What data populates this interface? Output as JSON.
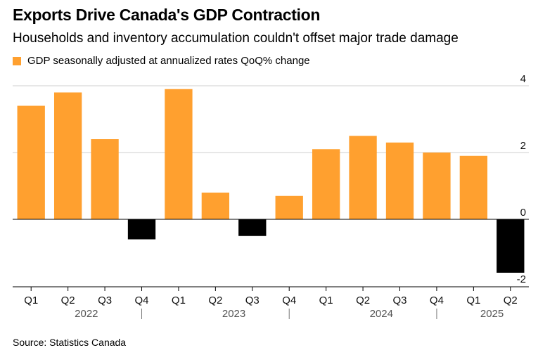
{
  "header": {
    "title": "Exports Drive Canada's GDP Contraction",
    "subtitle": "Households and inventory accumulation couldn't offset major trade damage"
  },
  "legend": {
    "label": "GDP seasonally adjusted at annualized rates QoQ% change",
    "color": "#FFA02F"
  },
  "source": "Source: Statistics Canada",
  "colors": {
    "positive": "#FFA02F",
    "negative": "#000000",
    "axis": "#000000",
    "grid": "#CFCFCF"
  },
  "chart_data": {
    "type": "bar",
    "categories": [
      "Q1",
      "Q2",
      "Q3",
      "Q4",
      "Q1",
      "Q2",
      "Q3",
      "Q4",
      "Q1",
      "Q2",
      "Q3",
      "Q4",
      "Q1",
      "Q2"
    ],
    "years": [
      {
        "label": "2022",
        "quarters": 4
      },
      {
        "label": "2023",
        "quarters": 4
      },
      {
        "label": "2024",
        "quarters": 4
      },
      {
        "label": "2025",
        "quarters": 2
      }
    ],
    "series": [
      {
        "name": "GDP seasonally adjusted at annualized rates QoQ% change",
        "values": [
          3.4,
          3.8,
          2.4,
          -0.6,
          3.9,
          0.8,
          -0.5,
          0.7,
          2.1,
          2.5,
          2.3,
          2.0,
          1.9,
          -1.6
        ]
      }
    ],
    "yticks": [
      4,
      2,
      0,
      -2
    ],
    "ylim": [
      -2,
      4
    ],
    "xlabel": "",
    "ylabel": "",
    "grid": true,
    "legend_position": "top-left"
  }
}
